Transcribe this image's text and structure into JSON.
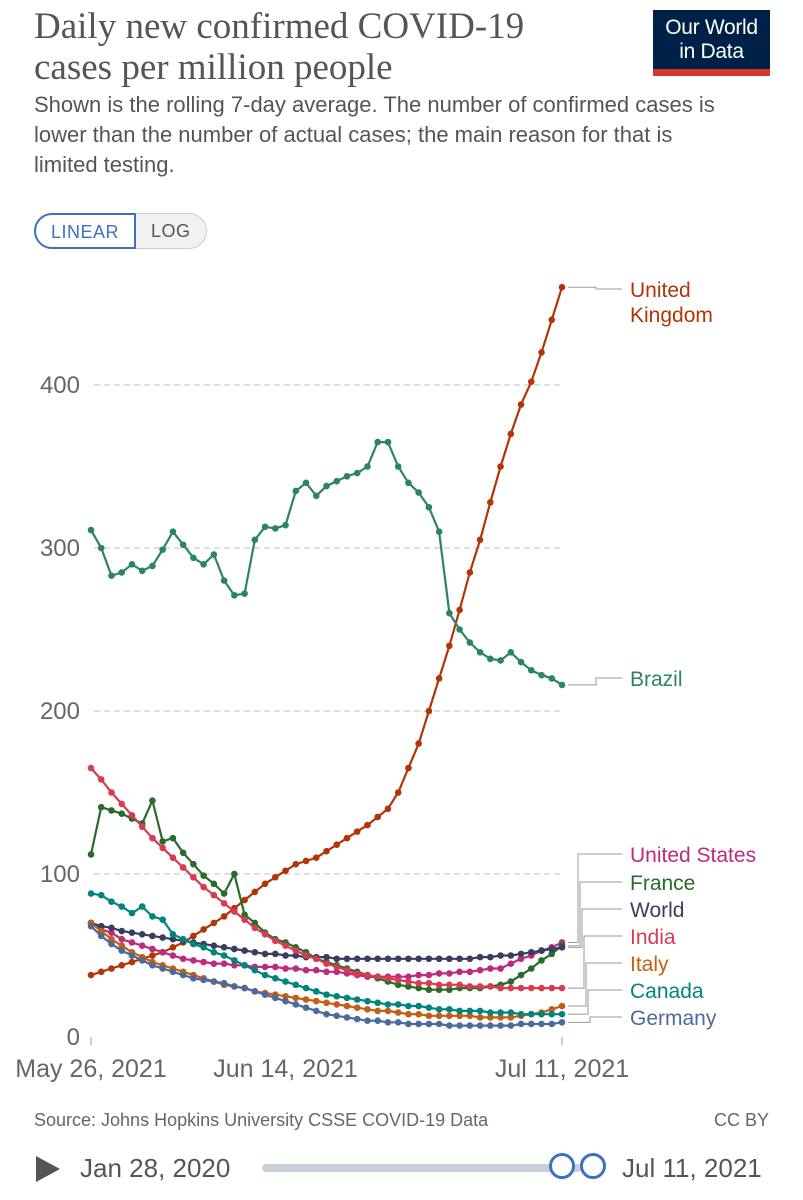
{
  "header": {
    "title": "Daily new confirmed COVID-19 cases per million people",
    "subtitle": "Shown is the rolling 7-day average. The number of confirmed cases is lower than the number of actual cases; the main reason for that is limited testing.",
    "logo_line1": "Our World",
    "logo_line2": "in Data"
  },
  "toggle": {
    "linear": "LINEAR",
    "log": "LOG",
    "active": "linear"
  },
  "chart_data": {
    "type": "line",
    "title": "Daily new confirmed COVID-19 cases per million people",
    "ylim": [
      0,
      460
    ],
    "y_ticks": [
      0,
      100,
      200,
      300,
      400
    ],
    "x_tick_labels": [
      {
        "label": "May 26, 2021",
        "index": 0
      },
      {
        "label": "Jun 14, 2021",
        "index": 19
      },
      {
        "label": "Jul 11, 2021",
        "index": 46
      }
    ],
    "grid": "horizontal-dashed",
    "series": [
      {
        "name": "United Kingdom",
        "label": "United\nKingdom",
        "color": "#b13507",
        "values": [
          38,
          40,
          42,
          44,
          46,
          48,
          50,
          52,
          55,
          58,
          62,
          66,
          70,
          74,
          79,
          84,
          89,
          94,
          98,
          102,
          106,
          108,
          110,
          114,
          118,
          122,
          126,
          130,
          135,
          140,
          150,
          165,
          180,
          200,
          220,
          240,
          262,
          285,
          305,
          328,
          350,
          370,
          388,
          402,
          420,
          440,
          460
        ]
      },
      {
        "name": "Brazil",
        "label": "Brazil",
        "color": "#2c8465",
        "values": [
          311,
          300,
          283,
          285,
          290,
          286,
          289,
          299,
          310,
          302,
          294,
          290,
          296,
          280,
          271,
          272,
          305,
          313,
          312,
          314,
          335,
          340,
          332,
          338,
          341,
          344,
          346,
          350,
          365,
          365,
          350,
          340,
          334,
          325,
          310,
          260,
          250,
          242,
          236,
          232,
          231,
          236,
          230,
          225,
          222,
          220,
          216
        ]
      },
      {
        "name": "United States",
        "label": "United States",
        "color": "#be2a7e",
        "values": [
          70,
          66,
          64,
          60,
          58,
          56,
          54,
          52,
          50,
          48,
          47,
          46,
          45,
          45,
          44,
          44,
          43,
          43,
          43,
          42,
          42,
          41,
          41,
          40,
          40,
          39,
          38,
          37,
          37,
          37,
          37,
          37,
          38,
          38,
          39,
          39,
          40,
          40,
          41,
          42,
          42,
          45,
          48,
          50,
          53,
          55,
          58
        ]
      },
      {
        "name": "France",
        "label": "France",
        "color": "#286b2a",
        "values": [
          112,
          141,
          139,
          137,
          134,
          131,
          145,
          120,
          122,
          113,
          106,
          99,
          94,
          88,
          100,
          75,
          70,
          64,
          60,
          58,
          55,
          52,
          48,
          46,
          44,
          42,
          40,
          38,
          36,
          34,
          32,
          31,
          30,
          29,
          29,
          29,
          30,
          30,
          30,
          31,
          32,
          34,
          38,
          42,
          47,
          51,
          56
        ]
      },
      {
        "name": "World",
        "label": "World",
        "color": "#3a3e5c",
        "values": [
          70,
          68,
          67,
          65,
          64,
          63,
          62,
          61,
          60,
          59,
          58,
          57,
          56,
          55,
          54,
          53,
          52,
          51,
          51,
          50,
          50,
          49,
          49,
          49,
          48,
          48,
          48,
          48,
          48,
          48,
          48,
          48,
          48,
          48,
          48,
          48,
          48,
          48,
          49,
          49,
          50,
          50,
          51,
          52,
          53,
          54,
          55
        ]
      },
      {
        "name": "India",
        "label": "India",
        "color": "#d73c50",
        "values": [
          165,
          158,
          150,
          143,
          136,
          129,
          122,
          116,
          110,
          104,
          98,
          92,
          87,
          82,
          77,
          72,
          67,
          63,
          59,
          56,
          53,
          50,
          48,
          45,
          43,
          41,
          39,
          38,
          37,
          36,
          35,
          34,
          33,
          33,
          32,
          32,
          32,
          31,
          31,
          31,
          30,
          30,
          30,
          30,
          30,
          30,
          30
        ]
      },
      {
        "name": "Italy",
        "label": "Italy",
        "color": "#c15f12",
        "values": [
          70,
          65,
          60,
          56,
          52,
          49,
          46,
          44,
          42,
          40,
          38,
          36,
          34,
          32,
          31,
          30,
          28,
          27,
          26,
          25,
          24,
          23,
          22,
          21,
          20,
          19,
          18,
          17,
          16,
          16,
          15,
          14,
          14,
          13,
          13,
          13,
          13,
          13,
          12,
          12,
          12,
          12,
          13,
          14,
          15,
          17,
          19
        ]
      },
      {
        "name": "Canada",
        "label": "Canada",
        "color": "#00847e",
        "values": [
          88,
          87,
          83,
          80,
          76,
          80,
          74,
          72,
          63,
          60,
          57,
          55,
          52,
          50,
          47,
          44,
          41,
          38,
          36,
          34,
          32,
          30,
          28,
          26,
          25,
          24,
          23,
          22,
          21,
          20,
          20,
          19,
          19,
          18,
          17,
          17,
          16,
          16,
          16,
          15,
          15,
          15,
          14,
          14,
          14,
          14,
          14
        ]
      },
      {
        "name": "Germany",
        "label": "Germany",
        "color": "#4c6a9c",
        "values": [
          68,
          62,
          57,
          53,
          50,
          47,
          44,
          42,
          40,
          38,
          36,
          35,
          34,
          33,
          31,
          30,
          28,
          26,
          24,
          22,
          20,
          18,
          16,
          14,
          13,
          12,
          11,
          10,
          10,
          9,
          9,
          8,
          8,
          8,
          8,
          7,
          7,
          7,
          7,
          7,
          7,
          7,
          8,
          8,
          8,
          8,
          9
        ]
      }
    ]
  },
  "footer": {
    "source": "Source: Johns Hopkins University CSSE COVID-19 Data",
    "license": "CC BY"
  },
  "timeline": {
    "start": "Jan 28, 2020",
    "end": "Jul 11, 2021"
  }
}
